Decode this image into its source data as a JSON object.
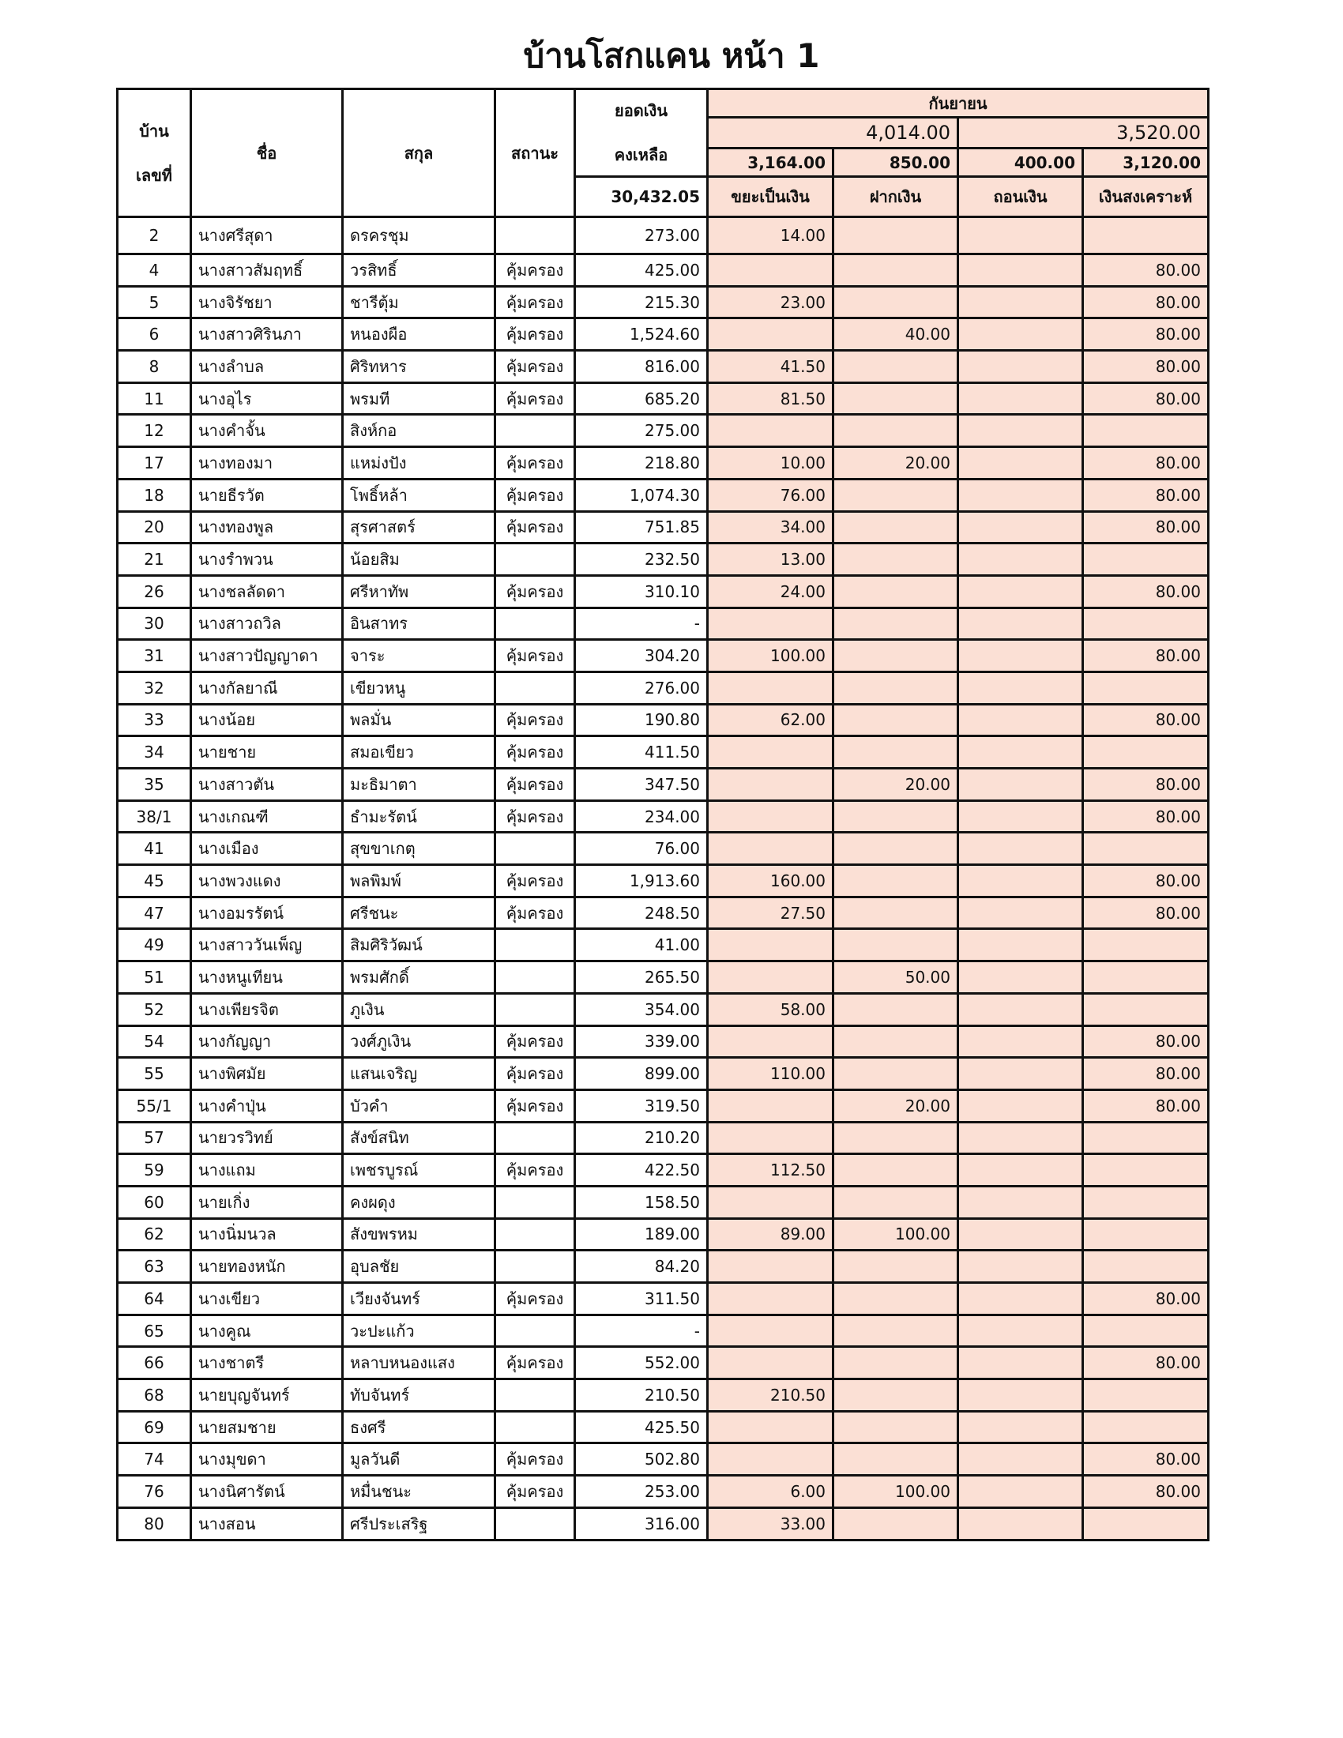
{
  "title": "บ้านโสกแคน  หน้า 1",
  "header": {
    "house_no": [
      "บ้าน",
      "เลขที่"
    ],
    "name": "ชื่อ",
    "surname": "สกุล",
    "status": "สถานะ",
    "balance": [
      "ยอดเงิน",
      "คงเหลือ"
    ],
    "balance_total": "30,432.05",
    "month": "กันยายน",
    "group_totals": [
      "4,014.00",
      "3,520.00"
    ],
    "column_totals": [
      "3,164.00",
      "850.00",
      "400.00",
      "3,120.00"
    ],
    "columns": [
      "ขยะเป็นเงิน",
      "ฝากเงิน",
      "ถอนเงิน",
      "เงินสงเคราะห์"
    ]
  },
  "colors": {
    "highlight": "#fbe0d5",
    "border": "#111111"
  },
  "rows": [
    [
      "2",
      "นางศรีสุดา",
      "ดรครชุม",
      "",
      "273.00",
      "14.00",
      "",
      "",
      ""
    ],
    [
      "4",
      "นางสาวสัมฤทธิ์",
      "วรสิทธิ์",
      "คุ้มครอง",
      "425.00",
      "",
      "",
      "",
      "80.00"
    ],
    [
      "5",
      "นางจิรัชยา",
      "ชารีตุ้ม",
      "คุ้มครอง",
      "215.30",
      "23.00",
      "",
      "",
      "80.00"
    ],
    [
      "6",
      "นางสาวศิรินภา",
      "หนองผือ",
      "คุ้มครอง",
      "1,524.60",
      "",
      "40.00",
      "",
      "80.00"
    ],
    [
      "8",
      "นางลำบล",
      "ศิริทหาร",
      "คุ้มครอง",
      "816.00",
      "41.50",
      "",
      "",
      "80.00"
    ],
    [
      "11",
      "นางอุไร",
      "พรมที",
      "คุ้มครอง",
      "685.20",
      "81.50",
      "",
      "",
      "80.00"
    ],
    [
      "12",
      "นางคำจั้น",
      "สิงห์กอ",
      "",
      "275.00",
      "",
      "",
      "",
      ""
    ],
    [
      "17",
      "นางทองมา",
      "แหม่งปัง",
      "คุ้มครอง",
      "218.80",
      "10.00",
      "20.00",
      "",
      "80.00"
    ],
    [
      "18",
      "นายธีรวัต",
      "โพธิ์หล้า",
      "คุ้มครอง",
      "1,074.30",
      "76.00",
      "",
      "",
      "80.00"
    ],
    [
      "20",
      "นางทองพูล",
      "สุรศาสตร์",
      "คุ้มครอง",
      "751.85",
      "34.00",
      "",
      "",
      "80.00"
    ],
    [
      "21",
      "นางรำพวน",
      "น้อยสิม",
      "",
      "232.50",
      "13.00",
      "",
      "",
      ""
    ],
    [
      "26",
      "นางชลลัดดา",
      "ศรีหาทัพ",
      "คุ้มครอง",
      "310.10",
      "24.00",
      "",
      "",
      "80.00"
    ],
    [
      "30",
      "นางสาวถวิล",
      "อินสาทร",
      "",
      "-",
      "",
      "",
      "",
      ""
    ],
    [
      "31",
      "นางสาวปัญญาดา",
      "จาระ",
      "คุ้มครอง",
      "304.20",
      "100.00",
      "",
      "",
      "80.00"
    ],
    [
      "32",
      "นางกัลยาณี",
      "เขียวหนู",
      "",
      "276.00",
      "",
      "",
      "",
      ""
    ],
    [
      "33",
      "นางน้อย",
      "พลมั่น",
      "คุ้มครอง",
      "190.80",
      "62.00",
      "",
      "",
      "80.00"
    ],
    [
      "34",
      "นายชาย",
      "สมอเขียว",
      "คุ้มครอง",
      "411.50",
      "",
      "",
      "",
      ""
    ],
    [
      "35",
      "นางสาวตัน",
      "มะธิมาตา",
      "คุ้มครอง",
      "347.50",
      "",
      "20.00",
      "",
      "80.00"
    ],
    [
      "38/1",
      "นางเกณฑี",
      "ธำมะรัตน์",
      "คุ้มครอง",
      "234.00",
      "",
      "",
      "",
      "80.00"
    ],
    [
      "41",
      "นางเมือง",
      "สุขขาเกตุ",
      "",
      "76.00",
      "",
      "",
      "",
      ""
    ],
    [
      "45",
      "นางพวงแดง",
      "พลพิมพ์",
      "คุ้มครอง",
      "1,913.60",
      "160.00",
      "",
      "",
      "80.00"
    ],
    [
      "47",
      "นางอมรรัตน์",
      "ศรีชนะ",
      "คุ้มครอง",
      "248.50",
      "27.50",
      "",
      "",
      "80.00"
    ],
    [
      "49",
      "นางสาววันเพ็ญ",
      "สิมศิริวัฒน์",
      "",
      "41.00",
      "",
      "",
      "",
      ""
    ],
    [
      "51",
      "นางหนูเทียน",
      "พรมศักดิ์",
      "",
      "265.50",
      "",
      "50.00",
      "",
      ""
    ],
    [
      "52",
      "นางเพียรจิต",
      "ภูเงิน",
      "",
      "354.00",
      "58.00",
      "",
      "",
      ""
    ],
    [
      "54",
      "นางกัญญา",
      "วงศ์ภูเงิน",
      "คุ้มครอง",
      "339.00",
      "",
      "",
      "",
      "80.00"
    ],
    [
      "55",
      "นางพิศมัย",
      "แสนเจริญ",
      "คุ้มครอง",
      "899.00",
      "110.00",
      "",
      "",
      "80.00"
    ],
    [
      "55/1",
      "นางคำปุ่น",
      "บัวคำ",
      "คุ้มครอง",
      "319.50",
      "",
      "20.00",
      "",
      "80.00"
    ],
    [
      "57",
      "นายวรวิทย์",
      "สังข์สนิท",
      "",
      "210.20",
      "",
      "",
      "",
      ""
    ],
    [
      "59",
      "นางแถม",
      "เพชรบูรณ์",
      "คุ้มครอง",
      "422.50",
      "112.50",
      "",
      "",
      ""
    ],
    [
      "60",
      "นายเกิ่ง",
      "คงผดุง",
      "",
      "158.50",
      "",
      "",
      "",
      ""
    ],
    [
      "62",
      "นางนิ่มนวล",
      "สังขพรหม",
      "",
      "189.00",
      "89.00",
      "100.00",
      "",
      ""
    ],
    [
      "63",
      "นายทองหนัก",
      "อุบลชัย",
      "",
      "84.20",
      "",
      "",
      "",
      ""
    ],
    [
      "64",
      "นางเขียว",
      "เวียงจันทร์",
      "คุ้มครอง",
      "311.50",
      "",
      "",
      "",
      "80.00"
    ],
    [
      "65",
      "นางคูณ",
      "วะปะแก้ว",
      "",
      "-",
      "",
      "",
      "",
      ""
    ],
    [
      "66",
      "นางชาตรี",
      "หลาบหนองแสง",
      "คุ้มครอง",
      "552.00",
      "",
      "",
      "",
      "80.00"
    ],
    [
      "68",
      "นายบุญจันทร์",
      "ทับจันทร์",
      "",
      "210.50",
      "210.50",
      "",
      "",
      ""
    ],
    [
      "69",
      "นายสมชาย",
      "ธงศรี",
      "",
      "425.50",
      "",
      "",
      "",
      ""
    ],
    [
      "74",
      "นางมุขดา",
      "มูลวันดี",
      "คุ้มครอง",
      "502.80",
      "",
      "",
      "",
      "80.00"
    ],
    [
      "76",
      "นางนิศารัตน์",
      "หมื่นชนะ",
      "คุ้มครอง",
      "253.00",
      "6.00",
      "100.00",
      "",
      "80.00"
    ],
    [
      "80",
      "นางสอน",
      "ศรีประเสริฐ",
      "",
      "316.00",
      "33.00",
      "",
      "",
      ""
    ]
  ]
}
